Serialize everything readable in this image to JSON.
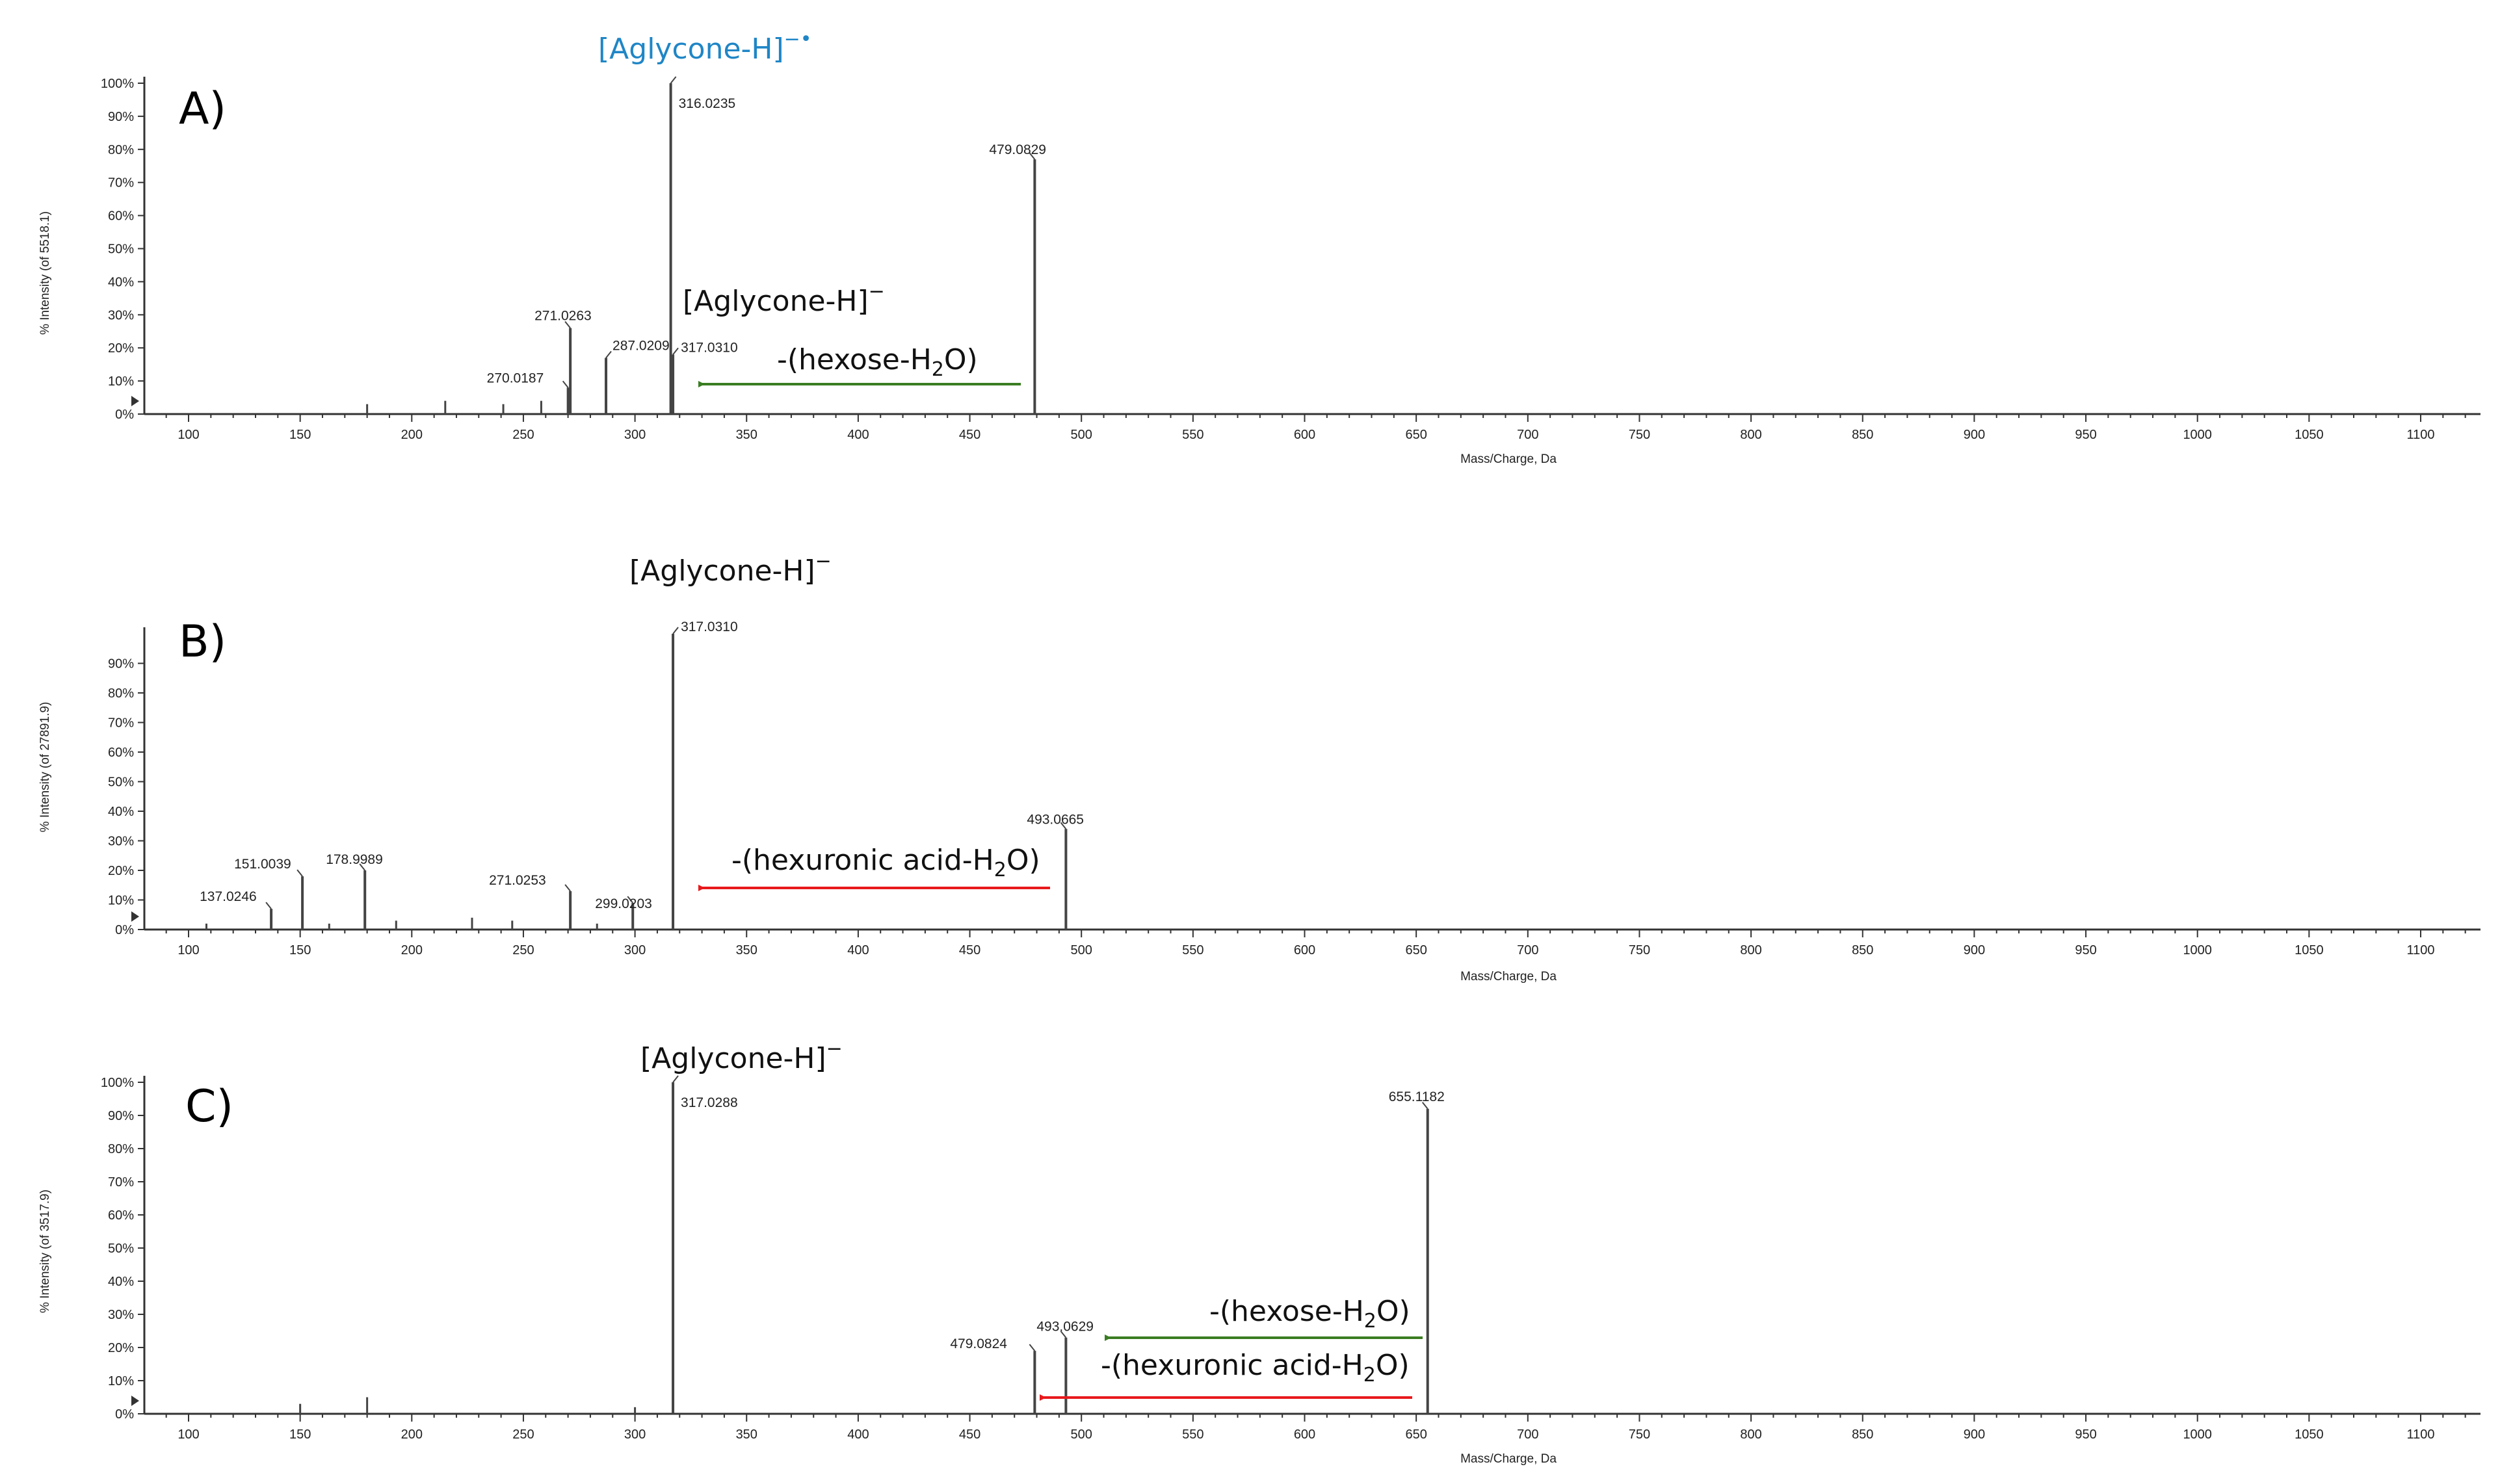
{
  "figure": {
    "colors": {
      "axis": "#333333",
      "peak": "#444444",
      "hexose_arrow": "#3a7d22",
      "hexuronic_arrow": "#e8191c",
      "radical_label": "#1f86c6"
    }
  },
  "chart_data": [
    {
      "type": "bar",
      "panel": "A)",
      "title": "",
      "xlabel": "Mass/Charge, Da",
      "ylabel": "% Intensity (of 5518.1)",
      "xlim": [
        80,
        1125
      ],
      "ylim": [
        0,
        100
      ],
      "x_ticks": [
        100,
        150,
        200,
        250,
        300,
        350,
        400,
        450,
        500,
        550,
        600,
        650,
        700,
        750,
        800,
        850,
        900,
        950,
        1000,
        1050,
        1100
      ],
      "y_ticks": [
        "0%",
        "10%",
        "20%",
        "30%",
        "40%",
        "50%",
        "60%",
        "70%",
        "80%",
        "90%",
        "100%"
      ],
      "peaks": [
        {
          "mz": 180,
          "intensity": 3
        },
        {
          "mz": 215,
          "intensity": 4
        },
        {
          "mz": 241,
          "intensity": 3
        },
        {
          "mz": 258,
          "intensity": 4
        },
        {
          "mz": 270.0187,
          "intensity": 8,
          "label": "270.0187"
        },
        {
          "mz": 271.0263,
          "intensity": 26,
          "label": "271.0263"
        },
        {
          "mz": 287.0209,
          "intensity": 17,
          "label": "287.0209"
        },
        {
          "mz": 316.0235,
          "intensity": 100,
          "label": "316.0235"
        },
        {
          "mz": 317.031,
          "intensity": 18,
          "label": "317.0310"
        },
        {
          "mz": 479.0829,
          "intensity": 77,
          "label": "479.0829"
        }
      ],
      "annotations": [
        {
          "id": "radical",
          "text": "[Aglycone-H]",
          "sup": "−•"
        },
        {
          "id": "aglycone",
          "text": "[Aglycone-H]",
          "sup": "−"
        },
        {
          "id": "loss-hexose",
          "text": "-(hexose-H",
          "sub": "2",
          "tail": "O)",
          "from_mz": 479,
          "to_mz": 323,
          "color": "green"
        }
      ]
    },
    {
      "type": "bar",
      "panel": "B)",
      "title": "",
      "xlabel": "Mass/Charge, Da",
      "ylabel": "% Intensity (of 27891.9)",
      "xlim": [
        80,
        1125
      ],
      "ylim": [
        0,
        100
      ],
      "x_ticks": [
        100,
        150,
        200,
        250,
        300,
        350,
        400,
        450,
        500,
        550,
        600,
        650,
        700,
        750,
        800,
        850,
        900,
        950,
        1000,
        1050,
        1100
      ],
      "y_ticks": [
        "0%",
        "10%",
        "20%",
        "30%",
        "40%",
        "50%",
        "60%",
        "70%",
        "80%",
        "90%"
      ],
      "peaks": [
        {
          "mz": 108,
          "intensity": 2
        },
        {
          "mz": 137.0246,
          "intensity": 7,
          "label": "137.0246"
        },
        {
          "mz": 151.0039,
          "intensity": 18,
          "label": "151.0039"
        },
        {
          "mz": 163,
          "intensity": 2
        },
        {
          "mz": 178.9989,
          "intensity": 20,
          "label": "178.9989"
        },
        {
          "mz": 193,
          "intensity": 3
        },
        {
          "mz": 227,
          "intensity": 4
        },
        {
          "mz": 245,
          "intensity": 3
        },
        {
          "mz": 271.0253,
          "intensity": 13,
          "label": "271.0253"
        },
        {
          "mz": 283,
          "intensity": 2
        },
        {
          "mz": 299.0203,
          "intensity": 9,
          "label": "299.0203"
        },
        {
          "mz": 317.031,
          "intensity": 100,
          "label": "317.0310"
        },
        {
          "mz": 493.0665,
          "intensity": 34,
          "label": "493.0665"
        }
      ],
      "annotations": [
        {
          "id": "aglycone",
          "text": "[Aglycone-H]",
          "sup": "−"
        },
        {
          "id": "loss-hexuronic",
          "text": "-(hexuronic acid-H",
          "sub": "2",
          "tail": "O)",
          "from_mz": 485,
          "to_mz": 323,
          "color": "red"
        }
      ]
    },
    {
      "type": "bar",
      "panel": "C)",
      "title": "",
      "xlabel": "Mass/Charge, Da",
      "ylabel": "% Intensity (of 3517.9)",
      "xlim": [
        80,
        1125
      ],
      "ylim": [
        0,
        100
      ],
      "x_ticks": [
        100,
        150,
        200,
        250,
        300,
        350,
        400,
        450,
        500,
        550,
        600,
        650,
        700,
        750,
        800,
        850,
        900,
        950,
        1000,
        1050,
        1100
      ],
      "y_ticks": [
        "0%",
        "10%",
        "20%",
        "30%",
        "40%",
        "50%",
        "60%",
        "70%",
        "80%",
        "90%",
        "100%"
      ],
      "peaks": [
        {
          "mz": 150,
          "intensity": 3
        },
        {
          "mz": 180,
          "intensity": 5
        },
        {
          "mz": 300,
          "intensity": 2
        },
        {
          "mz": 317.0288,
          "intensity": 100,
          "label": "317.0288"
        },
        {
          "mz": 479.0824,
          "intensity": 19,
          "label": "479.0824"
        },
        {
          "mz": 493.0629,
          "intensity": 23,
          "label": "493.0629"
        },
        {
          "mz": 655.1182,
          "intensity": 92,
          "label": "655.1182"
        }
      ],
      "annotations": [
        {
          "id": "aglycone",
          "text": "[Aglycone-H]",
          "sup": "−"
        },
        {
          "id": "loss-hexose",
          "text": "-(hexose-H",
          "sub": "2",
          "tail": "O)",
          "from_mz": 655,
          "to_mz": 503,
          "color": "green"
        },
        {
          "id": "loss-hexuronic",
          "text": "-(hexuronic acid-H",
          "sub": "2",
          "tail": "O)",
          "from_mz": 650,
          "to_mz": 488,
          "color": "red"
        }
      ]
    }
  ]
}
